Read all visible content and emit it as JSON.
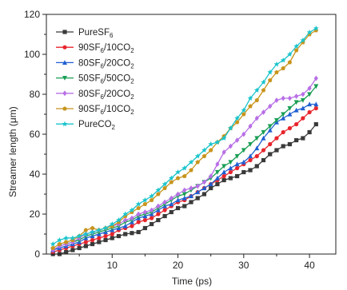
{
  "chart_data": {
    "type": "line",
    "xlabel": "Time (ps)",
    "ylabel_main": "Streamer length (",
    "ylabel_unit": "μm",
    "ylabel_close": ")",
    "xlim": [
      0,
      44
    ],
    "ylim": [
      0,
      120
    ],
    "xticks": [
      10,
      20,
      30,
      40
    ],
    "yticks": [
      0,
      20,
      40,
      60,
      80,
      100,
      120
    ],
    "legend_position": "top-left",
    "x": [
      1,
      2,
      3,
      4,
      5,
      6,
      7,
      8,
      9,
      10,
      11,
      12,
      13,
      14,
      15,
      16,
      17,
      18,
      19,
      20,
      21,
      22,
      23,
      24,
      25,
      26,
      27,
      28,
      29,
      30,
      31,
      32,
      33,
      34,
      35,
      36,
      37,
      38,
      39,
      40,
      41
    ],
    "series": [
      {
        "legend_parts": [
          {
            "t": "PureSF",
            "sub": false
          },
          {
            "t": "6",
            "sub": true
          }
        ],
        "color": "#3a3a3a",
        "marker": "square",
        "values": [
          0,
          0,
          1,
          2,
          3,
          4,
          5,
          6,
          7,
          8,
          9,
          10,
          10.5,
          11,
          13,
          15,
          17,
          19,
          21,
          23,
          24,
          26,
          28,
          30,
          33,
          35,
          37,
          38,
          39,
          41,
          42,
          44,
          47,
          50,
          52,
          54,
          55,
          57,
          58,
          61,
          65
        ]
      },
      {
        "legend_parts": [
          {
            "t": "90SF",
            "sub": false
          },
          {
            "t": "6",
            "sub": true
          },
          {
            "t": "/10CO",
            "sub": false
          },
          {
            "t": "2",
            "sub": true
          }
        ],
        "color": "#e8242c",
        "marker": "circle",
        "values": [
          1,
          2,
          3,
          4,
          5,
          6,
          7,
          8,
          9,
          10,
          12,
          13,
          14,
          16,
          17,
          18,
          20,
          22,
          24,
          26,
          27,
          29,
          31,
          33,
          35,
          37,
          39,
          41,
          43,
          45,
          47,
          49,
          52,
          55,
          58,
          61,
          63,
          65,
          68,
          71,
          73
        ]
      },
      {
        "legend_parts": [
          {
            "t": "80SF",
            "sub": false
          },
          {
            "t": "6",
            "sub": true
          },
          {
            "t": "/20CO",
            "sub": false
          },
          {
            "t": "2",
            "sub": true
          }
        ],
        "color": "#1f5fd1",
        "marker": "triangle",
        "values": [
          2,
          3,
          4,
          5,
          6,
          8,
          9,
          10,
          11,
          12,
          13,
          14,
          16,
          18,
          19,
          20,
          22,
          24,
          25,
          27,
          28,
          29,
          31,
          33,
          35,
          38,
          41,
          43,
          45,
          46,
          49,
          53,
          58,
          62,
          66,
          68,
          70,
          72,
          73,
          75,
          75
        ]
      },
      {
        "legend_parts": [
          {
            "t": "50SF",
            "sub": false
          },
          {
            "t": "6",
            "sub": true
          },
          {
            "t": "/50CO",
            "sub": false
          },
          {
            "t": "2",
            "sub": true
          }
        ],
        "color": "#1a9e55",
        "marker": "inverted-triangle",
        "values": [
          2,
          4,
          5,
          6,
          7,
          9,
          10,
          11,
          12,
          13,
          14,
          16,
          17,
          19,
          20,
          21,
          23,
          25,
          27,
          29,
          30,
          32,
          34,
          36,
          38,
          41,
          44,
          46,
          49,
          52,
          55,
          58,
          61,
          64,
          67,
          70,
          73,
          76,
          77,
          80,
          84
        ]
      },
      {
        "legend_parts": [
          {
            "t": "80SF",
            "sub": false
          },
          {
            "t": "6",
            "sub": true
          },
          {
            "t": "/20CO",
            "sub": false
          },
          {
            "t": "2",
            "sub": true
          }
        ],
        "color": "#b86fe6",
        "marker": "diamond",
        "values": [
          2,
          4,
          5,
          6,
          8,
          10,
          11,
          12,
          13,
          14,
          15,
          17,
          18,
          20,
          21,
          22,
          24,
          26,
          28,
          30,
          32,
          33,
          34,
          36,
          39,
          45,
          51,
          54,
          57,
          60,
          64,
          68,
          71,
          74,
          77,
          78,
          78,
          79,
          80,
          83,
          88
        ]
      },
      {
        "legend_parts": [
          {
            "t": "90SF",
            "sub": false
          },
          {
            "t": "6",
            "sub": true
          },
          {
            "t": "/10CO",
            "sub": false
          },
          {
            "t": "2",
            "sub": true
          }
        ],
        "color": "#c8941c",
        "marker": "pentagon",
        "values": [
          3,
          5,
          6,
          7,
          9,
          12,
          13,
          12,
          13,
          14,
          16,
          19,
          21,
          23,
          25,
          27,
          30,
          33,
          36,
          38,
          39,
          42,
          46,
          49,
          52,
          56,
          59,
          63,
          66,
          70,
          74,
          77,
          82,
          87,
          91,
          93,
          96,
          102,
          106,
          110,
          112
        ]
      },
      {
        "legend_parts": [
          {
            "t": "PureCO",
            "sub": false
          },
          {
            "t": "2",
            "sub": true
          }
        ],
        "color": "#1bc4cc",
        "marker": "star",
        "values": [
          5,
          7,
          8,
          8,
          9,
          10,
          11,
          12,
          13,
          15,
          17,
          20,
          22,
          25,
          27,
          29,
          32,
          35,
          38,
          41,
          43,
          46,
          49,
          52,
          55,
          56,
          58,
          63,
          68,
          72,
          78,
          82,
          86,
          91,
          95,
          97,
          100,
          104,
          107,
          111,
          113
        ]
      }
    ]
  }
}
